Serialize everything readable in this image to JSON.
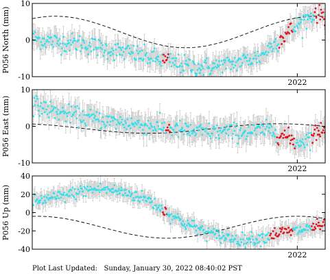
{
  "footer_text": "Plot Last Updated:   Sunday, January 30, 2022 08:40:02 PST",
  "colors": {
    "points": "#33e0ea",
    "recent_points": "#e0141e",
    "error_bars": "#c8c8c8",
    "model_line": "#000000",
    "frame": "#000000"
  },
  "chart_data": [
    {
      "type": "scatter",
      "ylabel": "P056 North (mm)",
      "ylim": [
        -10,
        10
      ],
      "yticks": [
        -10,
        0,
        10
      ],
      "xlim": [
        2019.15,
        2022.3
      ],
      "xtick_label": "2022",
      "xtick_value": 2022.0,
      "show_xtick_label": true,
      "grid": false,
      "trend_points": [
        [
          2019.15,
          0.5
        ],
        [
          2019.4,
          -0.5
        ],
        [
          2019.7,
          -1.0
        ],
        [
          2019.95,
          -2.5
        ],
        [
          2020.2,
          -3.5
        ],
        [
          2020.45,
          -5.0
        ],
        [
          2020.65,
          -6.0
        ],
        [
          2020.8,
          -7.0
        ],
        [
          2021.0,
          -7.5
        ],
        [
          2021.2,
          -7.0
        ],
        [
          2021.45,
          -5.5
        ],
        [
          2021.6,
          -4.5
        ],
        [
          2021.75,
          -1.0
        ],
        [
          2021.9,
          2.0
        ],
        [
          2022.05,
          5.0
        ],
        [
          2022.2,
          7.5
        ],
        [
          2022.3,
          7.0
        ]
      ],
      "scatter_sd": 1.3,
      "error_bar": 2.5,
      "red_segments": [
        [
          2020.55,
          2020.62
        ],
        [
          2021.8,
          2021.95
        ],
        [
          2022.18,
          2022.3
        ]
      ],
      "model": {
        "mean": 2.2,
        "amp": 4.3,
        "phase": 2019.4,
        "period": 2.8
      }
    },
    {
      "type": "scatter",
      "ylabel": "P056 East (mm)",
      "ylim": [
        -10,
        10
      ],
      "yticks": [
        -10,
        0,
        10
      ],
      "xlim": [
        2019.15,
        2022.3
      ],
      "xtick_label": "2022",
      "xtick_value": 2022.0,
      "show_xtick_label": true,
      "grid": false,
      "trend_points": [
        [
          2019.15,
          6.0
        ],
        [
          2019.4,
          4.0
        ],
        [
          2019.7,
          2.5
        ],
        [
          2019.95,
          1.5
        ],
        [
          2020.3,
          0.5
        ],
        [
          2020.6,
          -0.5
        ],
        [
          2020.9,
          -1.5
        ],
        [
          2021.2,
          -1.5
        ],
        [
          2021.5,
          -1.5
        ],
        [
          2021.7,
          -1.0
        ],
        [
          2021.85,
          -2.5
        ],
        [
          2022.0,
          -4.5
        ],
        [
          2022.15,
          -3.0
        ],
        [
          2022.3,
          0.0
        ]
      ],
      "scatter_sd": 1.2,
      "error_bar": 2.8,
      "red_segments": [
        [
          2020.58,
          2020.63
        ],
        [
          2021.78,
          2021.98
        ],
        [
          2022.15,
          2022.3
        ]
      ],
      "model": {
        "mean": -0.6,
        "amp": 1.3,
        "phase": 2019.0,
        "period": 2.8
      }
    },
    {
      "type": "scatter",
      "ylabel": "P056 Up (mm)",
      "ylim": [
        -40,
        40
      ],
      "yticks": [
        -40,
        -20,
        0,
        20,
        40
      ],
      "xlim": [
        2019.15,
        2022.3
      ],
      "xtick_label": "2022",
      "xtick_value": 2022.0,
      "show_xtick_label": true,
      "grid": false,
      "trend_points": [
        [
          2019.15,
          12.0
        ],
        [
          2019.4,
          16.0
        ],
        [
          2019.7,
          24.0
        ],
        [
          2019.9,
          26.0
        ],
        [
          2020.15,
          22.0
        ],
        [
          2020.4,
          14.0
        ],
        [
          2020.6,
          0.0
        ],
        [
          2020.8,
          -12.0
        ],
        [
          2021.1,
          -24.0
        ],
        [
          2021.4,
          -30.0
        ],
        [
          2021.6,
          -28.0
        ],
        [
          2021.8,
          -22.0
        ],
        [
          2022.0,
          -20.0
        ],
        [
          2022.2,
          -15.0
        ],
        [
          2022.3,
          -15.0
        ]
      ],
      "scatter_sd": 3.5,
      "error_bar": 8.0,
      "red_segments": [
        [
          2020.55,
          2020.6
        ],
        [
          2021.7,
          2021.95
        ],
        [
          2022.15,
          2022.3
        ]
      ],
      "model": {
        "mean": -16.0,
        "amp": 12.0,
        "phase": 2019.2,
        "period": 2.8
      }
    }
  ]
}
